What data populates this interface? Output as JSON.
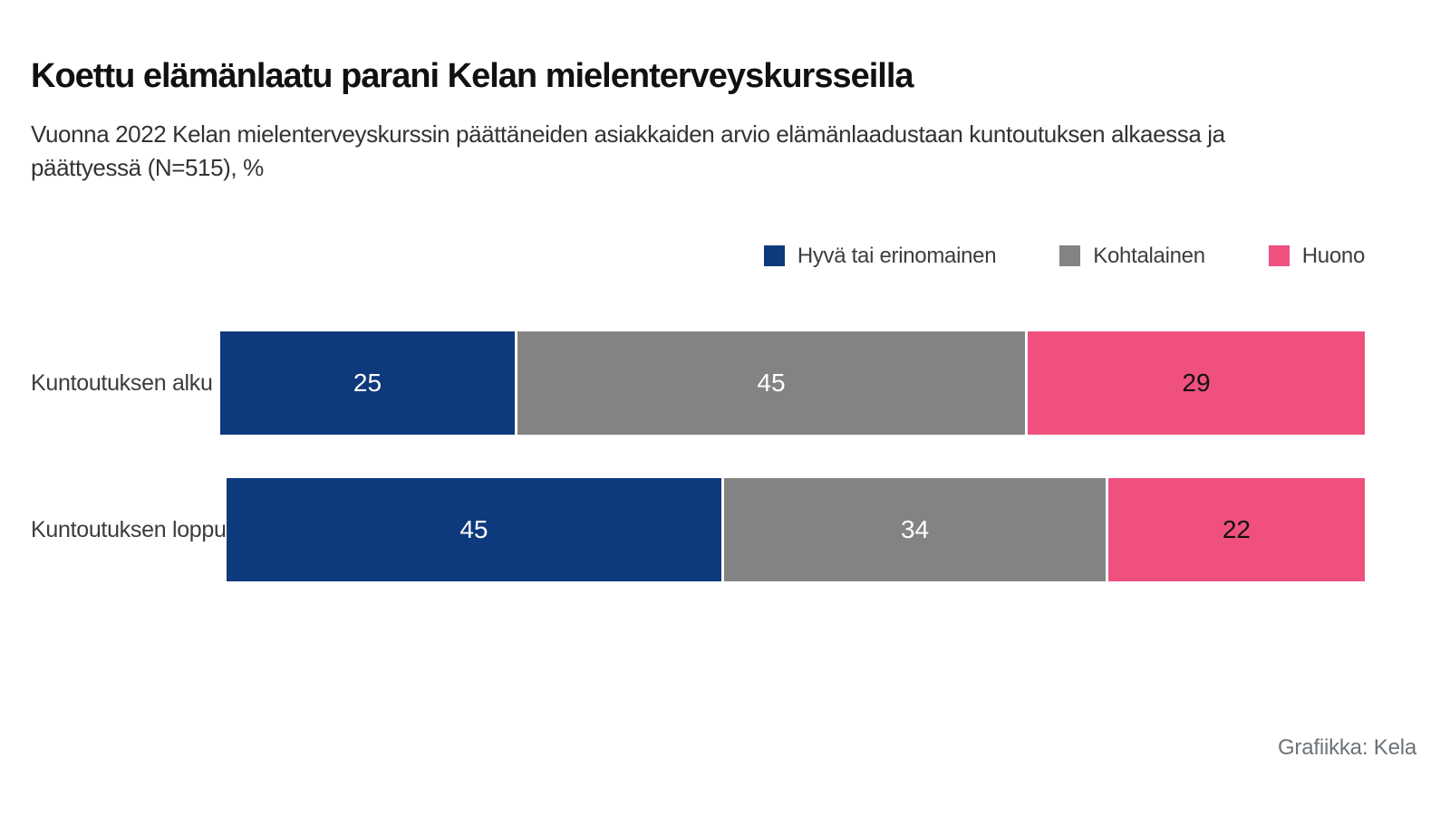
{
  "header": {
    "title": "Koettu elämänlaatu parani Kelan mielenterveyskursseilla",
    "subtitle": "Vuonna 2022 Kelan mielenterveyskurssin päättäneiden asiakkaiden arvio elämänlaadustaan kuntoutuksen alkaessa ja päättyessä (N=515), %",
    "subtitle_lines": [
      "Vuonna 2022 Kelan mielenterveyskurssin päättäneiden asiakkaiden arvio elämänlaadustaan kuntoutuksen alkaessa ja",
      "päättyessä (N=515), %"
    ]
  },
  "legend": [
    {
      "label": "Hyvä tai erinomainen",
      "color": "#0e3a7d",
      "value_color": "#ffffff"
    },
    {
      "label": "Kohtalainen",
      "color": "#838383",
      "value_color": "#ffffff"
    },
    {
      "label": "Huono",
      "color": "#f0507e",
      "value_color": "#111111"
    }
  ],
  "chart_data": {
    "type": "bar",
    "orientation": "horizontal",
    "stacked": true,
    "normalized_to_row_width": true,
    "unit": "%",
    "categories": [
      "Kuntoutuksen alku",
      "Kuntoutuksen loppu"
    ],
    "series": [
      {
        "name": "Hyvä tai erinomainen",
        "values": [
          25,
          45
        ]
      },
      {
        "name": "Kohtalainen",
        "values": [
          45,
          34
        ]
      },
      {
        "name": "Huono",
        "values": [
          29,
          22
        ]
      }
    ],
    "value_labels_shown": true,
    "axes_shown": false,
    "grid": false,
    "legend_position": "top-right"
  },
  "footer": {
    "credit": "Grafiikka: Kela"
  }
}
